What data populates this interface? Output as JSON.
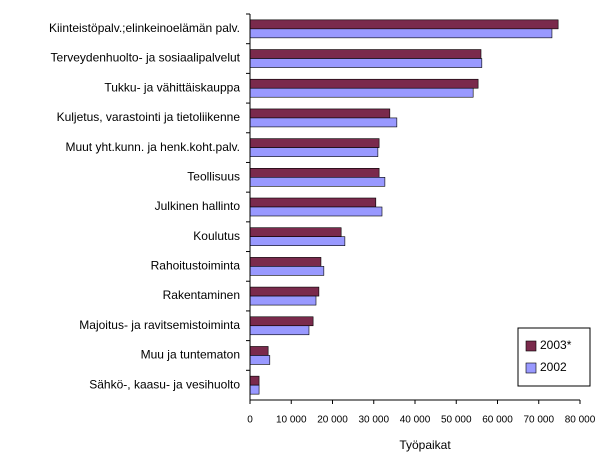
{
  "chart_data": {
    "type": "hbar",
    "categories": [
      "Kiinteistöpalv.;elinkeinoelämän palv.",
      "Terveydenhuolto- ja sosiaalipalvelut",
      "Tukku- ja vähittäiskauppa",
      "Kuljetus, varastointi ja tietoliikenne",
      "Muut yht.kunn. ja henk.koht.palv.",
      "Teollisuus",
      "Julkinen hallinto",
      "Koulutus",
      "Rahoitustoiminta",
      "Rakentaminen",
      "Majoitus- ja ravitsemistoiminta",
      "Muu ja tuntematon",
      "Sähkö-, kaasu- ja vesihuolto"
    ],
    "series": [
      {
        "name": "2003*",
        "color": "#7a2a4c",
        "values": [
          74700,
          56000,
          55300,
          33900,
          31300,
          31300,
          30500,
          22100,
          17200,
          16700,
          15300,
          4400,
          2200
        ]
      },
      {
        "name": "2002",
        "color": "#9999ff",
        "values": [
          73200,
          56200,
          54100,
          35600,
          31000,
          32700,
          32000,
          23000,
          17900,
          16000,
          14300,
          4800,
          2200
        ]
      }
    ],
    "xlabel": "Työpaikat",
    "xlim": [
      0,
      80000
    ],
    "xticks": [
      0,
      {
        "value": 10000,
        "label": "10 000"
      },
      {
        "value": 20000,
        "label": "20 000"
      },
      {
        "value": 30000,
        "label": "30 000"
      },
      {
        "value": 40000,
        "label": "40 000"
      },
      {
        "value": 50000,
        "label": "50 000"
      },
      {
        "value": 60000,
        "label": "60 000"
      },
      {
        "value": 70000,
        "label": "70 000"
      },
      {
        "value": 80000,
        "label": "80 000"
      }
    ],
    "legend": "lower right"
  }
}
